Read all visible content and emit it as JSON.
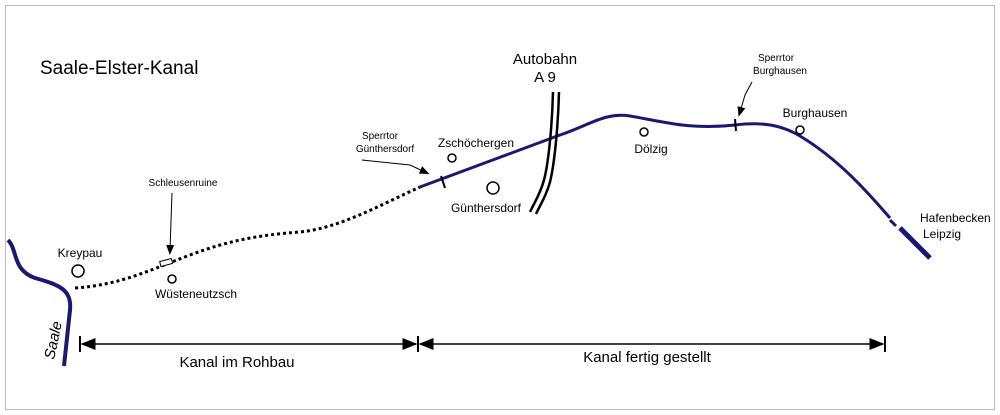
{
  "title": "Saale-Elster-Kanal",
  "autobahn": {
    "lines": [
      "Autobahn",
      "A 9"
    ]
  },
  "gates": [
    {
      "lines": [
        "Sperrtor",
        "Günthersdorf"
      ]
    },
    {
      "lines": [
        "Sperrtor",
        "Burghausen"
      ]
    }
  ],
  "places": {
    "kreypau": "Kreypau",
    "wuesteneutzsch": "Wüsteneutzsch",
    "schleusenruine": "Schleusenruine",
    "zschoechergen": "Zschöchergen",
    "guenthersdorf": "Günthersdorf",
    "doelzig": "Dölzig",
    "burghausen": "Burghausen"
  },
  "river": "Saale",
  "harbour": {
    "lines": [
      "Hafenbecken",
      "Leipzig"
    ]
  },
  "sections": [
    "Kanal im Rohbau",
    "Kanal fertig gestellt"
  ]
}
